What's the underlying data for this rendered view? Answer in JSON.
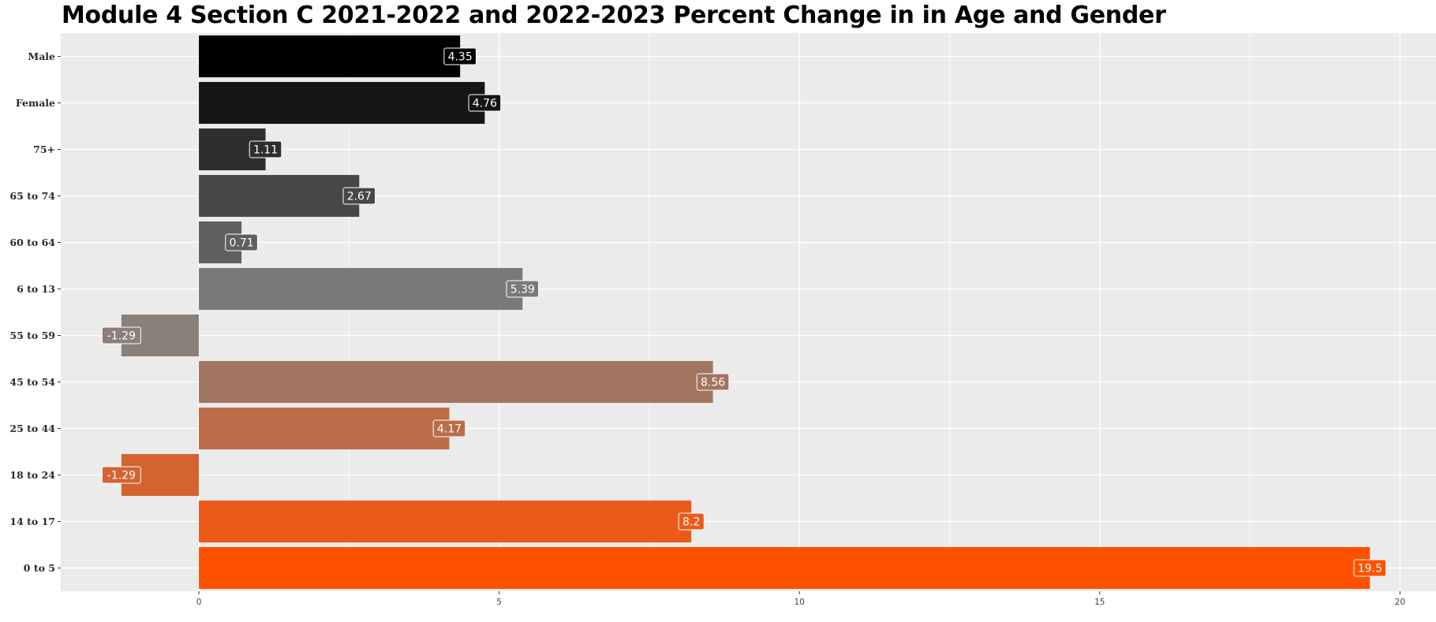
{
  "chart_data": {
    "type": "bar",
    "orientation": "horizontal",
    "title": "Module 4 Section C 2021-2022 and 2022-2023 Percent Change in in Age and Gender",
    "xlabel": "",
    "ylabel": "",
    "categories": [
      "Male",
      "Female",
      "75+",
      "65 to 74",
      "60 to 64",
      "6 to 13",
      "55 to 59",
      "45 to 54",
      "25 to 44",
      "18 to 24",
      "14 to 17",
      "0 to 5"
    ],
    "values": [
      4.35,
      4.76,
      1.11,
      2.67,
      0.71,
      5.39,
      -1.29,
      8.56,
      4.17,
      -1.29,
      8.2,
      19.5
    ],
    "data_labels": [
      "4.35",
      "4.76",
      "1.11",
      "2.67",
      "0.71",
      "5.39",
      "-1.29",
      "8.56",
      "4.17",
      "-1.29",
      "8.2",
      "19.5"
    ],
    "colors": [
      "#000000",
      "#151515",
      "#2e2e2e",
      "#474747",
      "#5f5f5f",
      "#797979",
      "#8b7f7a",
      "#a27561",
      "#ba6d48",
      "#d36330",
      "#ea5a19",
      "#ff5100"
    ],
    "xticks": [
      0,
      5,
      10,
      15,
      20
    ],
    "xlim": [
      -2.3,
      20.6
    ],
    "grid": true,
    "legend": "none",
    "panel_background": "#ebebeb",
    "grid_color": "#ffffff"
  }
}
